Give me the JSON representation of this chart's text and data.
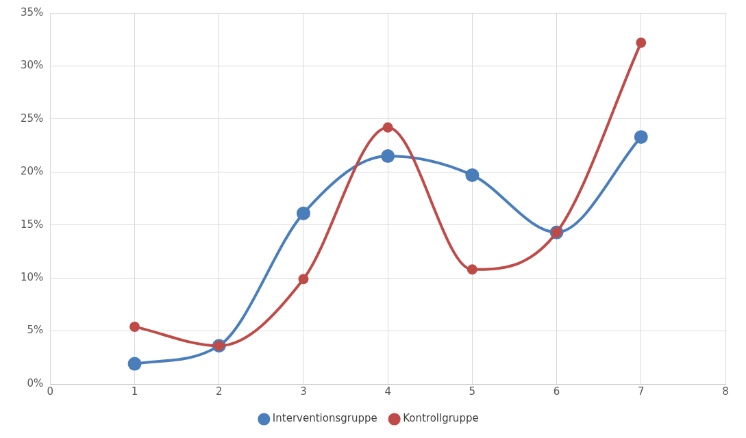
{
  "chart_data": {
    "type": "line",
    "x": [
      1,
      2,
      3,
      4,
      5,
      6,
      7
    ],
    "series": [
      {
        "name": "Interventionsgruppe",
        "color": "#4a7ebb",
        "values": [
          1.9,
          3.6,
          16.1,
          21.5,
          19.7,
          14.3,
          23.3
        ]
      },
      {
        "name": "Kontrollgruppe",
        "color": "#be4b48",
        "values": [
          5.4,
          3.6,
          9.9,
          24.2,
          10.8,
          14.3,
          32.2
        ]
      }
    ],
    "xlim": [
      0,
      8
    ],
    "xticks": [
      0,
      1,
      2,
      3,
      4,
      5,
      6,
      7,
      8
    ],
    "ylim": [
      0,
      35
    ],
    "yticks": [
      {
        "value": 0,
        "label": "0%"
      },
      {
        "value": 5,
        "label": "5%"
      },
      {
        "value": 10,
        "label": "10%"
      },
      {
        "value": 15,
        "label": "15%"
      },
      {
        "value": 20,
        "label": "20%"
      },
      {
        "value": 25,
        "label": "25%"
      },
      {
        "value": 30,
        "label": "30%"
      },
      {
        "value": 35,
        "label": "35%"
      }
    ],
    "grid": true,
    "legend": "bottom",
    "marker": "circle",
    "line_style": "solid"
  }
}
